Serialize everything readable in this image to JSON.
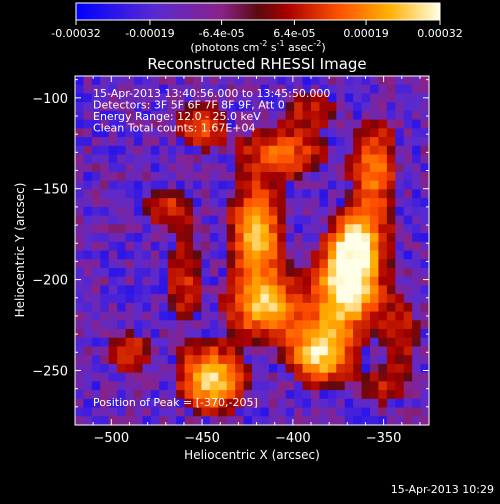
{
  "colorbar": {
    "tick_labels": [
      "-0.00032",
      "-0.00019",
      "-6.4e-05",
      "6.4e-05",
      "0.00019",
      "0.00032"
    ],
    "tick_values": [
      -0.00032,
      -0.00019,
      -6.4e-05,
      6.4e-05,
      0.00019,
      0.00032
    ],
    "units_main": "(photons cm",
    "units_exp1": "-2",
    "units_mid": " s",
    "units_exp2": "-1",
    "units_mid2": " asec",
    "units_exp3": "-2",
    "units_end": ")",
    "range": [
      -0.00032,
      0.00032
    ]
  },
  "chart_data": {
    "type": "heatmap",
    "title": "Reconstructed RHESSI Image",
    "xlabel": "Heliocentric X (arcsec)",
    "ylabel": "Heliocentric Y (arcsec)",
    "xlim": [
      -520,
      -325
    ],
    "ylim": [
      -280,
      -88
    ],
    "x_ticks": [
      -500,
      -450,
      -400,
      -350
    ],
    "x_tick_labels": [
      "−500",
      "−450",
      "−400",
      "−350"
    ],
    "y_ticks": [
      -250,
      -200,
      -150,
      -100
    ],
    "y_tick_labels": [
      "−250",
      "−200",
      "−150",
      "−100"
    ],
    "grid_cols": 42,
    "grid_rows": 40,
    "info_lines": [
      "15-Apr-2013 13:40:56.000 to 13:45:50.000",
      "Detectors: 3F 5F 6F 7F 8F 9F, Att 0",
      "Energy Range: 12.0 - 25.0 keV",
      "Clean    Total counts: 1.67E+04"
    ],
    "peak_label": "Position of Peak = [-370,-205]",
    "peak": [
      -370,
      -205
    ],
    "blobs": [
      {
        "x": -370,
        "y": -205,
        "amp": 1.0,
        "sx": 12,
        "sy": 15
      },
      {
        "x": -365,
        "y": -180,
        "amp": 0.8,
        "sx": 10,
        "sy": 12
      },
      {
        "x": -385,
        "y": -240,
        "amp": 0.85,
        "sx": 12,
        "sy": 12
      },
      {
        "x": -445,
        "y": -255,
        "amp": 0.85,
        "sx": 12,
        "sy": 12
      },
      {
        "x": -420,
        "y": -175,
        "amp": 0.75,
        "sx": 10,
        "sy": 20
      },
      {
        "x": -415,
        "y": -215,
        "amp": 0.7,
        "sx": 14,
        "sy": 12
      },
      {
        "x": -405,
        "y": -130,
        "amp": 0.5,
        "sx": 16,
        "sy": 10
      },
      {
        "x": -355,
        "y": -140,
        "amp": 0.55,
        "sx": 9,
        "sy": 20
      },
      {
        "x": -340,
        "y": -230,
        "amp": 0.35,
        "sx": 8,
        "sy": 15
      },
      {
        "x": -490,
        "y": -240,
        "amp": 0.45,
        "sx": 8,
        "sy": 8
      },
      {
        "x": -470,
        "y": -160,
        "amp": 0.35,
        "sx": 12,
        "sy": 8
      },
      {
        "x": -450,
        "y": -115,
        "amp": 0.45,
        "sx": 10,
        "sy": 10
      },
      {
        "x": -390,
        "y": -105,
        "amp": 0.3,
        "sx": 12,
        "sy": 8
      },
      {
        "x": -460,
        "y": -200,
        "amp": 0.35,
        "sx": 8,
        "sy": 20
      },
      {
        "x": -350,
        "y": -260,
        "amp": 0.3,
        "sx": 10,
        "sy": 8
      }
    ]
  },
  "timestamp": "15-Apr-2013 10:29"
}
